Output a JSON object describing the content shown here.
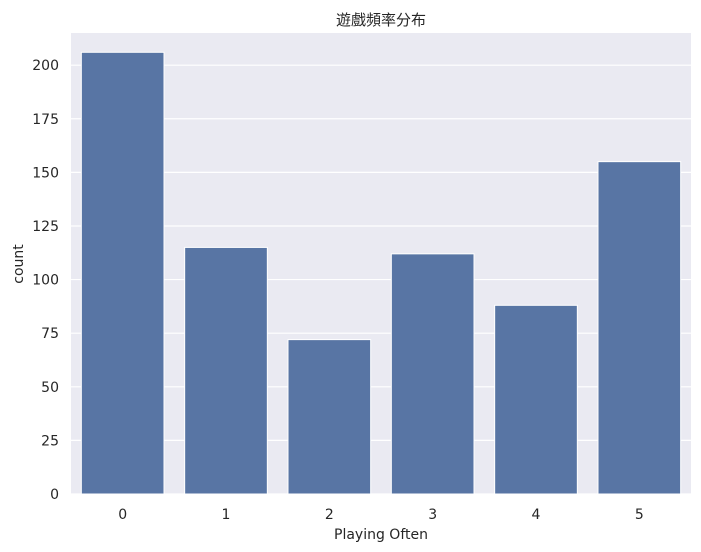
{
  "chart_data": {
    "type": "bar",
    "title": "遊戲頻率分布",
    "xlabel": "Playing Often",
    "ylabel": "count",
    "categories": [
      "0",
      "1",
      "2",
      "3",
      "4",
      "5"
    ],
    "values": [
      206,
      115,
      72,
      112,
      88,
      155
    ],
    "ylim": [
      0,
      215
    ],
    "yticks": [
      "0",
      "25",
      "50",
      "75",
      "100",
      "125",
      "150",
      "175",
      "200"
    ],
    "grid": true,
    "bar_color": "#5875a4",
    "background_color": "#eaeaf2"
  }
}
